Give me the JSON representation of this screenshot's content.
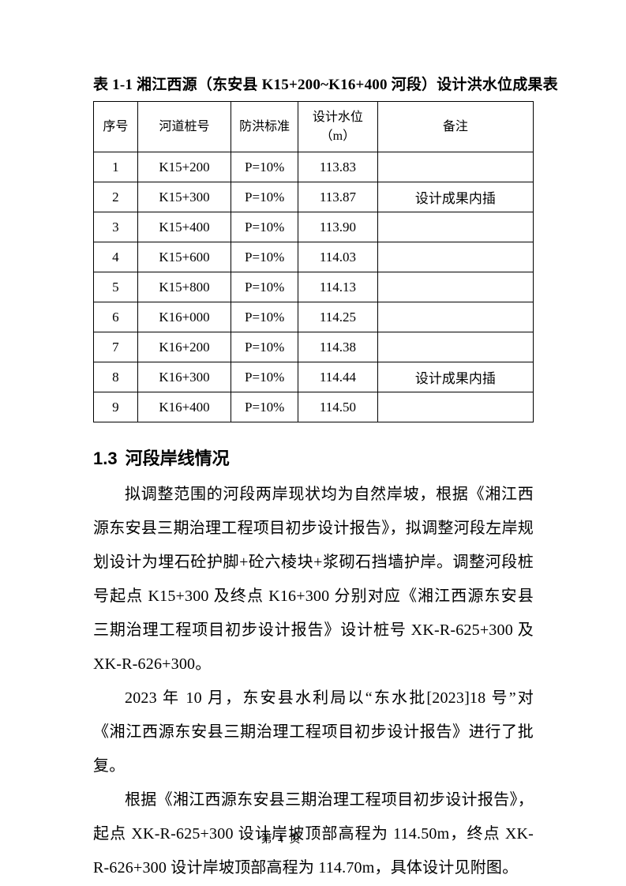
{
  "table_block": {
    "caption": "表 1-1  湘江西源（东安县 K15+200~K16+400 河段）设计洪水位成果表",
    "headers": {
      "no": "序号",
      "station": "河道桩号",
      "standard": "防洪标准",
      "level": "设计水位\n（m）",
      "note": "备注"
    },
    "rows": [
      {
        "no": "1",
        "station": "K15+200",
        "standard": "P=10%",
        "level": "113.83",
        "note": ""
      },
      {
        "no": "2",
        "station": "K15+300",
        "standard": "P=10%",
        "level": "113.87",
        "note": "设计成果内插"
      },
      {
        "no": "3",
        "station": "K15+400",
        "standard": "P=10%",
        "level": "113.90",
        "note": ""
      },
      {
        "no": "4",
        "station": "K15+600",
        "standard": "P=10%",
        "level": "114.03",
        "note": ""
      },
      {
        "no": "5",
        "station": "K15+800",
        "standard": "P=10%",
        "level": "114.13",
        "note": ""
      },
      {
        "no": "6",
        "station": "K16+000",
        "standard": "P=10%",
        "level": "114.25",
        "note": ""
      },
      {
        "no": "7",
        "station": "K16+200",
        "standard": "P=10%",
        "level": "114.38",
        "note": ""
      },
      {
        "no": "8",
        "station": "K16+300",
        "standard": "P=10%",
        "level": "114.44",
        "note": "设计成果内插"
      },
      {
        "no": "9",
        "station": "K16+400",
        "standard": "P=10%",
        "level": "114.50",
        "note": ""
      }
    ]
  },
  "section": {
    "heading_number": "1.3",
    "heading_title": "河段岸线情况",
    "paragraphs": [
      "拟调整范围的河段两岸现状均为自然岸坡，根据《湘江西源东安县三期治理工程项目初步设计报告》，拟调整河段左岸规划设计为埋石砼护脚+砼六棱块+浆砌石挡墙护岸。调整河段桩号起点 K15+300 及终点 K16+300 分别对应《湘江西源东安县三期治理工程项目初步设计报告》设计桩号 XK-R-625+300 及 XK-R-626+300。",
      "2023 年 10 月，东安县水利局以“东水批[2023]18 号”对《湘江西源东安县三期治理工程项目初步设计报告》进行了批复。",
      "根据《湘江西源东安县三期治理工程项目初步设计报告》，起点 XK-R-625+300 设计岸坡顶部高程为 114.50m，终点 XK-R-626+300 设计岸坡顶部高程为 114.70m，具体设计见附图。"
    ]
  },
  "footer": {
    "page_label": "第 4 页"
  }
}
